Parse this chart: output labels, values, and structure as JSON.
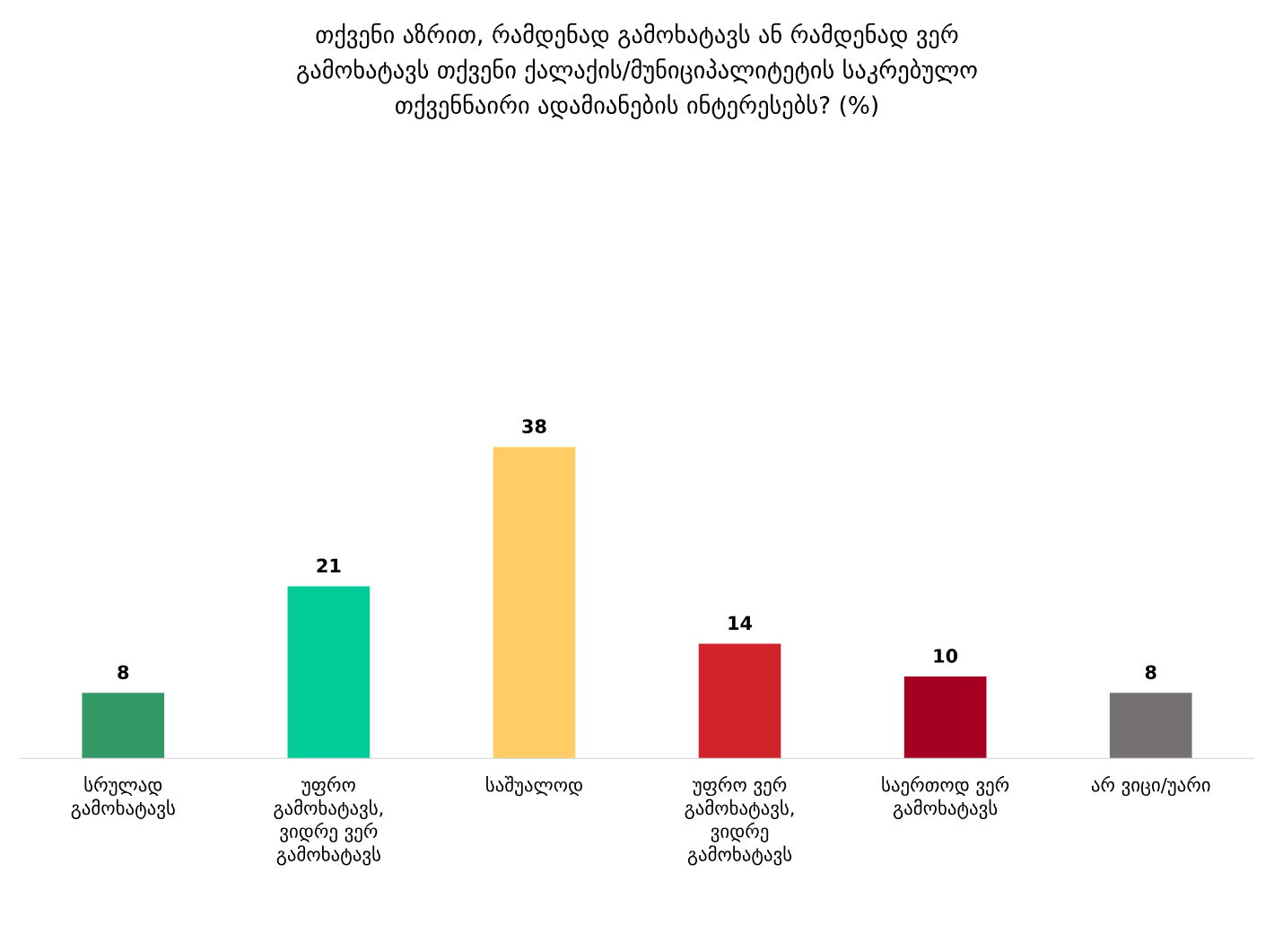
{
  "chart_data": {
    "type": "bar",
    "title": "თქვენი აზრით, რამდენად გამოხატავს ან რამდენად ვერ გამოხატავს თქვენი ქალაქის/მუნიციპალიტეტის საკრებულო თქვენნაირი ადამიანების ინტერესებს? (%)",
    "categories": [
      "სრულად გამოხატავს",
      "უფრო გამოხატავს, ვიდრე ვერ გამოხატავს",
      "საშუალოდ",
      "უფრო ვერ გამოხატავს, ვიდრე გამოხატავს",
      "საერთოდ ვერ გამოხატავს",
      "არ ვიცი/უარი"
    ],
    "values": [
      8,
      21,
      38,
      14,
      10,
      8
    ],
    "colors": [
      "#339966",
      "#00cc99",
      "#ffcc66",
      "#d2232a",
      "#a50021",
      "#767171"
    ],
    "data_labels": true
  }
}
